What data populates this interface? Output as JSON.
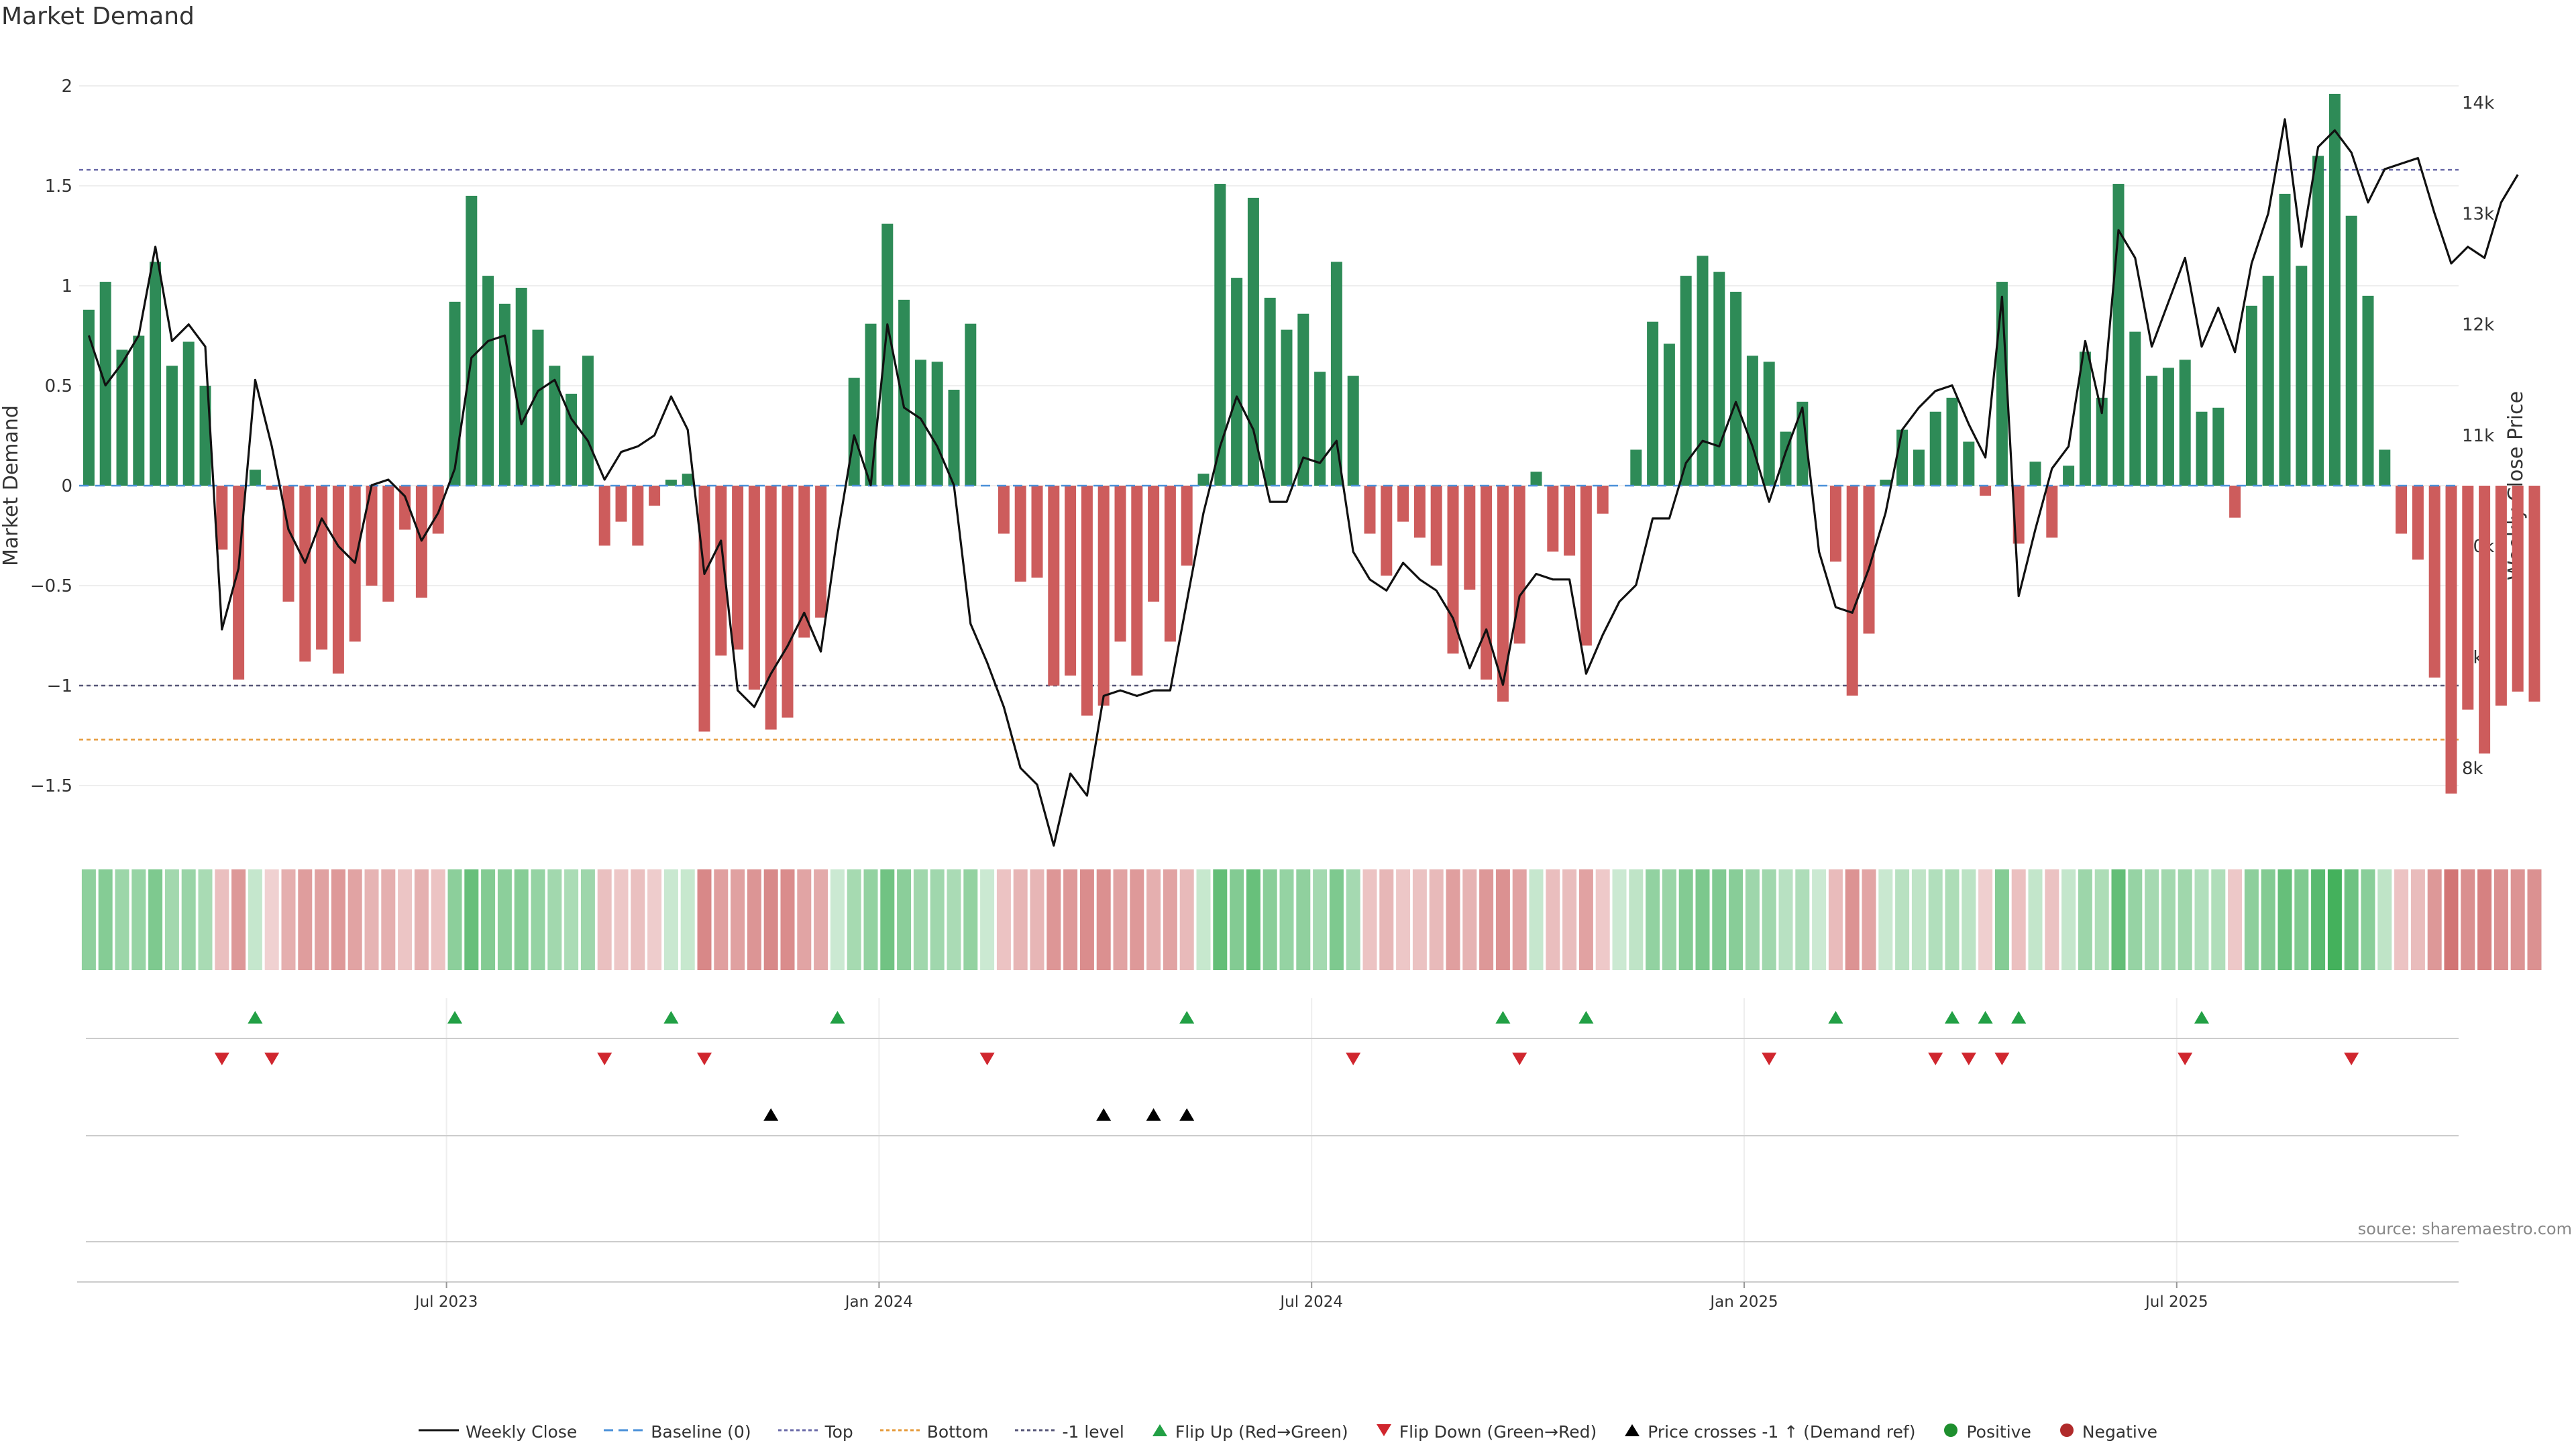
{
  "chart_data": {
    "type": "bar",
    "title": "Market Demand",
    "ylabel": "Market Demand",
    "y2label": "Weekly Close Price",
    "ylim": [
      -1.6,
      2.1
    ],
    "y2lim": [
      7600,
      14300
    ],
    "yticks": [
      2,
      1.5,
      1,
      0.5,
      0,
      -0.5,
      -1,
      -1.5
    ],
    "ytick_labels": [
      "2",
      "1.5",
      "1",
      "0.5",
      "0",
      "−0.5",
      "−1",
      "−1.5"
    ],
    "y2ticks": [
      14000,
      13000,
      12000,
      11000,
      10000,
      9000,
      8000
    ],
    "y2tick_labels": [
      "14k",
      "13k",
      "12k",
      "11k",
      "10k",
      "9k",
      "8k"
    ],
    "xtick_labels": [
      "Jul 2023",
      "Jan 2024",
      "Jul 2024",
      "Jan 2025",
      "Jul 2025"
    ],
    "xtick_weeks": [
      22,
      48,
      74,
      100,
      126
    ],
    "levels": {
      "top": 1.58,
      "bottom": -1.27,
      "minus_one": -1.0
    },
    "demand": [
      0.88,
      1.02,
      0.68,
      0.75,
      1.12,
      0.6,
      0.72,
      0.5,
      -0.32,
      -0.97,
      0.08,
      -0.02,
      -0.58,
      -0.88,
      -0.82,
      -0.94,
      -0.78,
      -0.5,
      -0.58,
      -0.22,
      -0.56,
      -0.24,
      0.92,
      1.45,
      1.05,
      0.91,
      0.99,
      0.78,
      0.6,
      0.46,
      0.65,
      -0.3,
      -0.18,
      -0.3,
      -0.1,
      0.03,
      0.06,
      -1.23,
      -0.85,
      -0.82,
      -1.02,
      -1.22,
      -1.16,
      -0.76,
      -0.66,
      0.0,
      0.54,
      0.81,
      1.31,
      0.93,
      0.63,
      0.62,
      0.48,
      0.81,
      0.0,
      -0.24,
      -0.48,
      -0.46,
      -1.0,
      -0.95,
      -1.15,
      -1.1,
      -0.78,
      -0.95,
      -0.58,
      -0.78,
      -0.4,
      0.06,
      1.51,
      1.04,
      1.44,
      0.94,
      0.78,
      0.86,
      0.57,
      1.12,
      0.55,
      -0.24,
      -0.45,
      -0.18,
      -0.26,
      -0.4,
      -0.84,
      -0.52,
      -0.97,
      -1.08,
      -0.79,
      0.07,
      -0.33,
      -0.35,
      -0.8,
      -0.14,
      0.0,
      0.18,
      0.82,
      0.71,
      1.05,
      1.15,
      1.07,
      0.97,
      0.65,
      0.62,
      0.27,
      0.42,
      0.0,
      -0.38,
      -1.05,
      -0.74,
      0.03,
      0.28,
      0.18,
      0.37,
      0.44,
      0.22,
      -0.05,
      1.02,
      -0.29,
      0.12,
      -0.26,
      0.1,
      0.67,
      0.44,
      1.51,
      0.77,
      0.55,
      0.59,
      0.63,
      0.37,
      0.39,
      -0.16,
      0.9,
      1.05,
      1.46,
      1.1,
      1.65,
      1.96,
      1.35,
      0.95,
      0.18,
      -0.24,
      -0.37,
      -0.96,
      -1.54,
      -1.12,
      -1.34,
      -1.1,
      -1.03,
      -1.08
    ],
    "close": [
      11900,
      11450,
      11650,
      11900,
      12700,
      11850,
      12000,
      11800,
      9250,
      9800,
      11500,
      10900,
      10150,
      9850,
      10250,
      10000,
      9850,
      10550,
      10600,
      10450,
      10050,
      10300,
      10700,
      11700,
      11850,
      11900,
      11100,
      11400,
      11500,
      11150,
      10950,
      10600,
      10850,
      10900,
      11000,
      11350,
      11050,
      9750,
      10050,
      8700,
      8550,
      8850,
      9100,
      9400,
      9050,
      10100,
      11000,
      10550,
      12000,
      11250,
      11150,
      10900,
      10550,
      9300,
      8950,
      8550,
      8000,
      7850,
      7300,
      7950,
      7750,
      8650,
      8700,
      8650,
      8700,
      8700,
      9500,
      10300,
      10900,
      11350,
      11050,
      10400,
      10400,
      10800,
      10750,
      10950,
      9950,
      9700,
      9600,
      9850,
      9700,
      9600,
      9350,
      8900,
      9250,
      8750,
      9550,
      9750,
      9700,
      9700,
      8850,
      9200,
      9500,
      9650,
      10250,
      10250,
      10750,
      10950,
      10900,
      11300,
      10900,
      10400,
      10850,
      11250,
      9950,
      9450,
      9400,
      9800,
      10300,
      11050,
      11250,
      11400,
      11450,
      11100,
      10800,
      12250,
      9550,
      10150,
      10700,
      10900,
      11850,
      11200,
      12850,
      12600,
      11800,
      12200,
      12600,
      11800,
      12150,
      11750,
      12550,
      13000,
      13850,
      12700,
      13600,
      13750,
      13550,
      13100,
      13400,
      13450,
      13500,
      13000,
      12550,
      12700,
      12600,
      13100,
      13350
    ],
    "flip_up_weeks": [
      10,
      22,
      35,
      45,
      66,
      85,
      90,
      105,
      112,
      114,
      116,
      127
    ],
    "flip_down_weeks": [
      8,
      11,
      31,
      37,
      54,
      76,
      86,
      101,
      111,
      113,
      115,
      126,
      136
    ],
    "price_cross_weeks": [
      41,
      61,
      64,
      66
    ],
    "legend": [
      "Weekly Close",
      "Baseline (0)",
      "Top",
      "Bottom",
      "-1 level",
      "Flip Up (Red→Green)",
      "Flip Down (Green→Red)",
      "Price crosses -1 ↑ (Demand ref)",
      "Positive",
      "Negative"
    ],
    "colors": {
      "positive": "#2e8b57",
      "negative": "#cd5c5c",
      "close": "#111111",
      "baseline": "#4a90d9",
      "top": "#6a6aa8",
      "bottom": "#e59a3a",
      "minus_one": "#555577",
      "flip_up": "#22a045",
      "flip_down": "#d0262e",
      "price_cross": "#000000",
      "legend_positive": "#1e8f2e",
      "legend_negative": "#b02a2a"
    },
    "source": "source: sharemaestro.com"
  }
}
